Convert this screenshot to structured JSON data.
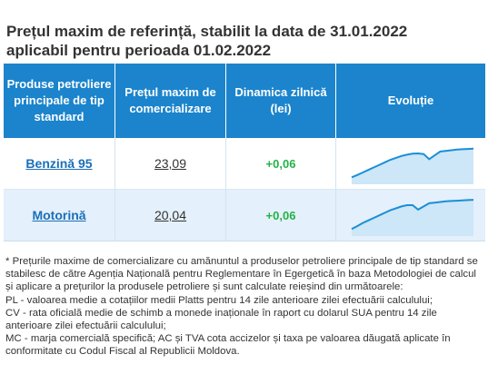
{
  "title_line1": "Prețul maxim de referință, stabilit la data de 31.01.2022",
  "title_line2": "aplicabil pentru perioada 01.02.2022",
  "headers": {
    "product": "Produse petroliere principale de tip standard",
    "price": "Prețul maxim de comercializare",
    "dynamics": "Dinamica zilnică (lei)",
    "evolution": "Evoluție"
  },
  "rows": [
    {
      "product": "Benzină 95",
      "price": "23,09",
      "dynamics": "+0,06",
      "evolution": [
        0.05,
        0.12,
        0.2,
        0.28,
        0.36,
        0.44,
        0.52,
        0.6,
        0.66,
        0.72,
        0.76,
        0.79,
        0.8,
        0.78,
        0.62,
        0.74,
        0.86,
        0.88,
        0.9,
        0.92,
        0.93,
        0.94,
        0.95
      ]
    },
    {
      "product": "Motorină",
      "price": "20,04",
      "dynamics": "+0,06",
      "evolution": [
        0.05,
        0.14,
        0.24,
        0.32,
        0.4,
        0.48,
        0.56,
        0.64,
        0.7,
        0.76,
        0.8,
        0.8,
        0.66,
        0.76,
        0.86,
        0.88,
        0.9,
        0.92,
        0.93,
        0.94,
        0.95,
        0.96,
        0.97
      ]
    }
  ],
  "notes": [
    "* Prețurile maxime de comercializare cu amănuntul a produselor petroliere principale de tip standard se stabilesc de către Agenția Națională pentru Reglementare în Egergetică în baza Metodologiei de calcul și aplicare a prețurilor la produsele petroliere și sunt calculate reieșind din următoarele:",
    "PL - valoarea medie a cotațiilor medii Platts pentru 14 zile anterioare zilei efectuării calculului;",
    "CV - rata oficială medie de schimb a monede inaționale în raport cu dolarul SUA pentru 14 zile anterioare zilei efectuării calculului;",
    "MC - marja comercială specifică; AC și TVA cota accizelor și taxa pe valoarea dăugată aplicate în conformitate cu Codul Fiscal al Republicii Moldova."
  ],
  "colors": {
    "header_bg": "#1b84cc",
    "link": "#1b6fb8",
    "positive": "#22b345",
    "spark_line": "#1a8fd6",
    "spark_fill": "#cde6f8"
  }
}
